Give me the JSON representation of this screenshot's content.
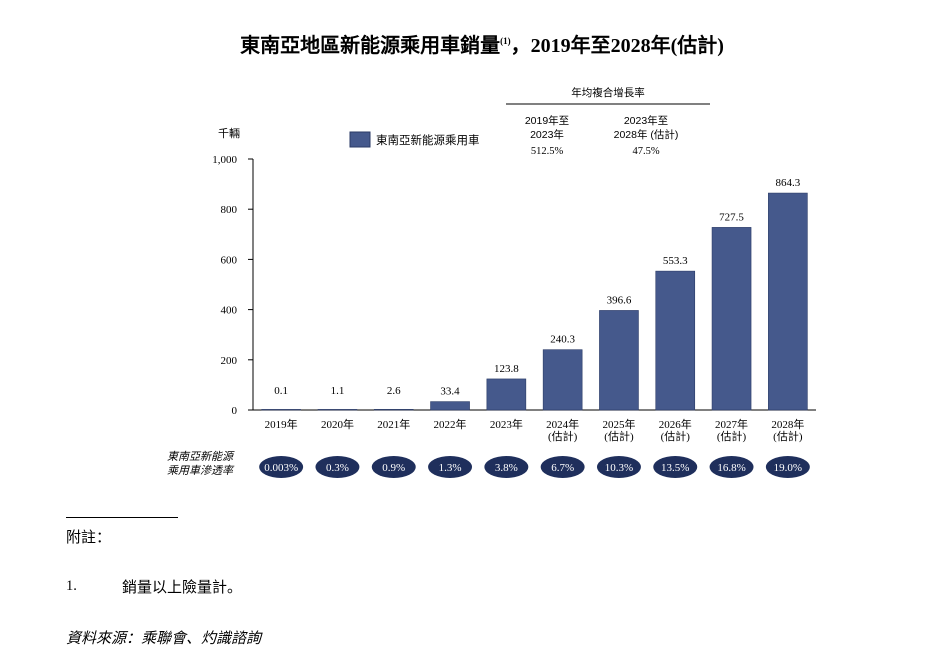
{
  "colors": {
    "bar": "#45598c",
    "bar_stroke": "#2a3a66",
    "pill": "#1f2f5c",
    "axis": "#000000"
  },
  "title": {
    "main": "東南亞地區新能源乘用車銷量",
    "sup": "(1)",
    "tail": "，2019年至2028年(估計)"
  },
  "chart_data": {
    "type": "bar",
    "unit_label": "千輛",
    "ylim": [
      0,
      1000
    ],
    "yticks": [
      "0",
      "200",
      "400",
      "600",
      "800",
      "1,000"
    ],
    "ytick_values": [
      0,
      200,
      400,
      600,
      800,
      1000
    ],
    "categories": [
      [
        "2019年"
      ],
      [
        "2020年"
      ],
      [
        "2021年"
      ],
      [
        "2022年"
      ],
      [
        "2023年"
      ],
      [
        "2024年",
        "(估計)"
      ],
      [
        "2025年",
        "(估計)"
      ],
      [
        "2026年",
        "(估計)"
      ],
      [
        "2027年",
        "(估計)"
      ],
      [
        "2028年",
        "(估計)"
      ]
    ],
    "series": [
      {
        "name": "東南亞新能源乘用車",
        "values": [
          0.1,
          1.1,
          2.6,
          33.4,
          123.8,
          240.3,
          396.6,
          553.3,
          727.5,
          864.3
        ],
        "labels": [
          "0.1",
          "1.1",
          "2.6",
          "33.4",
          "123.8",
          "240.3",
          "396.6",
          "553.3",
          "727.5",
          "864.3"
        ]
      }
    ],
    "legend": "top-center",
    "cagr": {
      "heading": "年均複合增長率",
      "periods": [
        {
          "label_lines": [
            "2019年至",
            "2023年"
          ],
          "value": "512.5%"
        },
        {
          "label_lines": [
            "2023年至",
            "2028年 (估計)"
          ],
          "value": "47.5%"
        }
      ]
    },
    "penetration": {
      "label_lines": [
        "東南亞新能源",
        "乘用車滲透率"
      ],
      "values": [
        "0.003%",
        "0.3%",
        "0.9%",
        "1.3%",
        "3.8%",
        "6.7%",
        "10.3%",
        "13.5%",
        "16.8%",
        "19.0%"
      ]
    }
  },
  "notes": {
    "heading": "附註：",
    "items": [
      {
        "num": "1.",
        "text": "銷量以上險量計。"
      }
    ]
  },
  "source": "資料來源：乘聯會、灼識諮詢"
}
